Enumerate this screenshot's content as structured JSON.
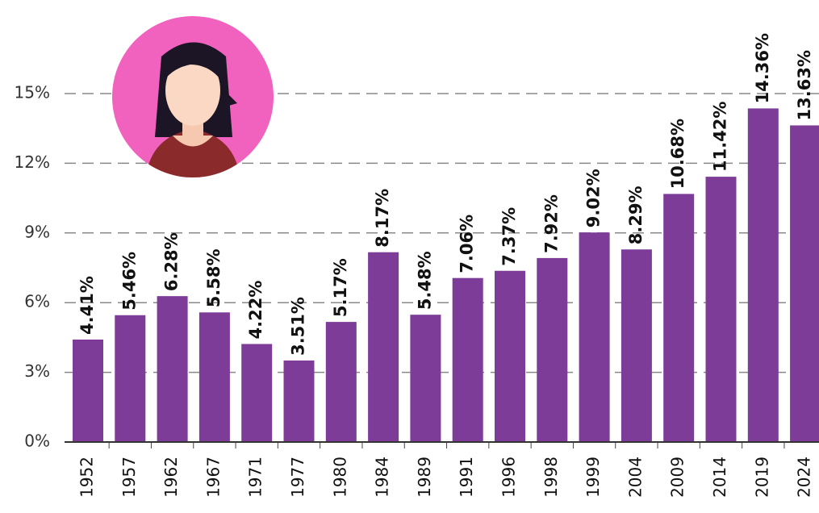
{
  "chart_data": {
    "type": "bar",
    "categories": [
      "1952",
      "1957",
      "1962",
      "1967",
      "1971",
      "1977",
      "1980",
      "1984",
      "1989",
      "1991",
      "1996",
      "1998",
      "1999",
      "2004",
      "2009",
      "2014",
      "2019",
      "2024"
    ],
    "values": [
      4.41,
      5.46,
      6.28,
      5.58,
      4.22,
      3.51,
      5.17,
      8.17,
      5.48,
      7.06,
      7.37,
      7.92,
      9.02,
      8.29,
      10.68,
      11.42,
      14.36,
      13.63
    ],
    "value_labels": [
      "4.41%",
      "5.46%",
      "6.28%",
      "5.58%",
      "4.22%",
      "3.51%",
      "5.17%",
      "8.17%",
      "5.48%",
      "7.06%",
      "7.37%",
      "7.92%",
      "9.02%",
      "8.29%",
      "10.68%",
      "11.42%",
      "14.36%",
      "13.63%"
    ],
    "color": "#7d3c98",
    "ylim": [
      0,
      15
    ],
    "yticks": [
      {
        "value": 0,
        "label": "0%"
      },
      {
        "value": 3,
        "label": "3%"
      },
      {
        "value": 6,
        "label": "6%"
      },
      {
        "value": 9,
        "label": "9%"
      },
      {
        "value": 12,
        "label": "12%"
      },
      {
        "value": 15,
        "label": "15%"
      }
    ],
    "grid": true
  }
}
